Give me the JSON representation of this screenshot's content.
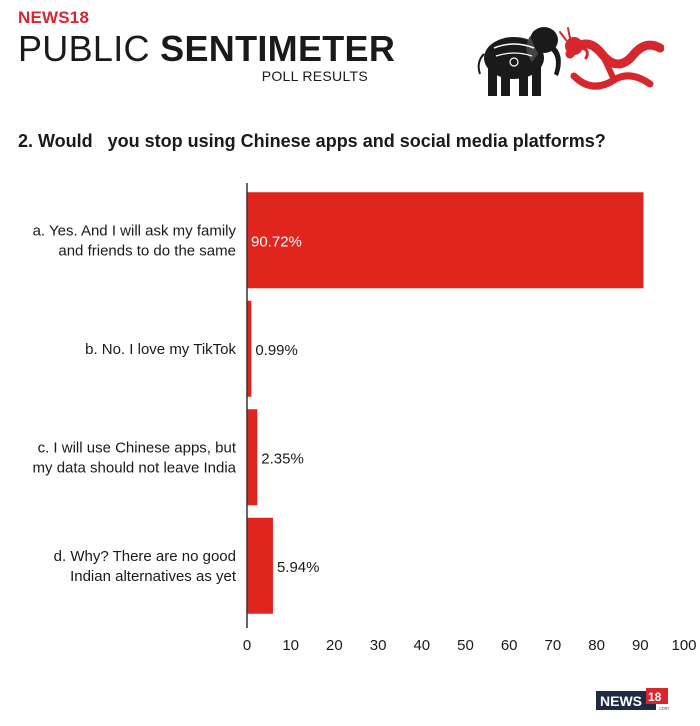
{
  "header": {
    "brand": "NEWS18",
    "title_light": "PUBLIC ",
    "title_bold": "SENTIMETER",
    "subtitle": "POLL RESULTS"
  },
  "question": "2. Would   you stop using Chinese apps and social media platforms?",
  "illustration": {
    "left_icon": "elephant-icon",
    "right_icon": "dragon-icon"
  },
  "footer": {
    "logo_text": "NEWS",
    "logo_badge": "18",
    "logo_suffix": ".com"
  },
  "colors": {
    "bar": "#e0251f",
    "brand": "#d7262e",
    "axis": "#333333"
  },
  "chart_data": {
    "type": "bar",
    "orientation": "horizontal",
    "categories": [
      [
        "a. Yes. And I will ask my family",
        "and friends to do the same"
      ],
      [
        "b. No. I love my TikTok"
      ],
      [
        "c. I will use Chinese apps, but",
        "my data should not leave India"
      ],
      [
        "d. Why? There are no good",
        "Indian alternatives as yet"
      ]
    ],
    "values": [
      90.72,
      0.99,
      2.35,
      5.94
    ],
    "data_labels": [
      "90.72%",
      "0.99%",
      "2.35%",
      "5.94%"
    ],
    "xlim": [
      0,
      100
    ],
    "xticks": [
      0,
      10,
      20,
      30,
      40,
      50,
      60,
      70,
      80,
      90,
      100
    ],
    "grid": false,
    "legend": "none"
  }
}
